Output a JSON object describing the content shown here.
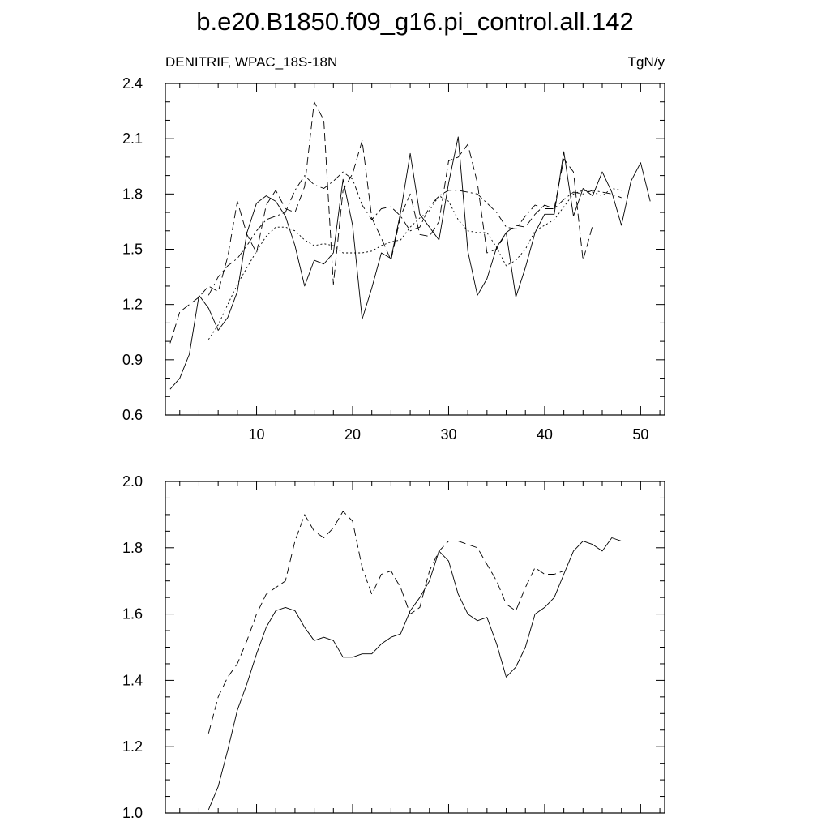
{
  "title": "b.e20.B1850.f09_g16.pi_control.all.142",
  "chart_data": [
    {
      "type": "line",
      "subtitle_left": "DENITRIF, WPAC_18S-18N",
      "subtitle_right": "TgN/y",
      "xlim": [
        0.5,
        52.5
      ],
      "ylim": [
        0.6,
        2.4
      ],
      "xticks": [
        10,
        20,
        30,
        40,
        50
      ],
      "xtick_labels": [
        "10",
        "20",
        "30",
        "40",
        "50"
      ],
      "yticks": [
        0.6,
        0.9,
        1.2,
        1.5,
        1.8,
        2.1,
        2.4
      ],
      "ytick_labels": [
        "0.6",
        "0.9",
        "1.2",
        "1.5",
        "1.8",
        "2.1",
        "2.4"
      ],
      "series": [
        {
          "style": "solid",
          "x": [
            1,
            2,
            3,
            4,
            5,
            6,
            7,
            8,
            9,
            10,
            11,
            12,
            13,
            14,
            15,
            16,
            17,
            18,
            19,
            20,
            21,
            22,
            23,
            24,
            25,
            26,
            27,
            28,
            29,
            30,
            31,
            32,
            33,
            34,
            35,
            36,
            37,
            38,
            39,
            40,
            41,
            42,
            43,
            44,
            45,
            46,
            47,
            48,
            49,
            50,
            51
          ],
          "y": [
            0.74,
            0.8,
            0.93,
            1.25,
            1.18,
            1.06,
            1.13,
            1.27,
            1.59,
            1.75,
            1.79,
            1.76,
            1.68,
            1.52,
            1.3,
            1.44,
            1.42,
            1.48,
            1.88,
            1.63,
            1.12,
            1.29,
            1.48,
            1.45,
            1.7,
            2.02,
            1.69,
            1.62,
            1.55,
            1.86,
            2.11,
            1.49,
            1.25,
            1.34,
            1.51,
            1.59,
            1.24,
            1.4,
            1.59,
            1.69,
            1.69,
            2.03,
            1.68,
            1.83,
            1.79,
            1.92,
            1.81,
            1.63,
            1.87,
            1.97,
            1.76
          ]
        },
        {
          "style": "dashed",
          "x": [
            1,
            2,
            3,
            4,
            5,
            6,
            7,
            8,
            9,
            10,
            11,
            12,
            13,
            14,
            15,
            16,
            17,
            18,
            19,
            20,
            21,
            22,
            23,
            24,
            25,
            26,
            27,
            28,
            29,
            30,
            31,
            32,
            33,
            34,
            35,
            36,
            37,
            38,
            39,
            40,
            41,
            42,
            43,
            44,
            45
          ],
          "y": [
            0.99,
            1.16,
            1.2,
            1.24,
            1.3,
            1.27,
            1.46,
            1.76,
            1.58,
            1.48,
            1.74,
            1.82,
            1.72,
            1.7,
            1.84,
            2.3,
            2.2,
            1.31,
            1.82,
            1.91,
            2.09,
            1.67,
            1.56,
            1.44,
            1.68,
            1.8,
            1.58,
            1.57,
            1.65,
            1.98,
            2.0,
            2.07,
            1.86,
            1.48,
            1.5,
            1.59,
            1.63,
            1.62,
            1.69,
            1.74,
            1.72,
            1.99,
            1.92,
            1.44,
            1.63
          ]
        },
        {
          "style": "dash-dot",
          "x": [
            5,
            6,
            7,
            8,
            9,
            10,
            11,
            12,
            13,
            14,
            15,
            16,
            17,
            18,
            19,
            20,
            21,
            22,
            23,
            24,
            25,
            26,
            27,
            28,
            29,
            30,
            31,
            32,
            33,
            34,
            35,
            36,
            37,
            38,
            39,
            40,
            41,
            42,
            43,
            44,
            45,
            46,
            47,
            48
          ],
          "y": [
            1.25,
            1.35,
            1.41,
            1.45,
            1.52,
            1.6,
            1.66,
            1.68,
            1.7,
            1.82,
            1.9,
            1.85,
            1.83,
            1.87,
            1.92,
            1.88,
            1.74,
            1.66,
            1.72,
            1.73,
            1.68,
            1.6,
            1.62,
            1.73,
            1.79,
            1.82,
            1.82,
            1.81,
            1.8,
            1.75,
            1.7,
            1.62,
            1.61,
            1.68,
            1.74,
            1.72,
            1.72,
            1.77,
            1.81,
            1.8,
            1.82,
            1.81,
            1.8,
            1.78
          ]
        },
        {
          "style": "dotted",
          "x": [
            5,
            6,
            7,
            8,
            9,
            10,
            11,
            12,
            13,
            14,
            15,
            16,
            17,
            18,
            19,
            20,
            21,
            22,
            23,
            24,
            25,
            26,
            27,
            28,
            29,
            30,
            31,
            32,
            33,
            34,
            35,
            36,
            37,
            38,
            39,
            40,
            41,
            42,
            43,
            44,
            45,
            46,
            47,
            48
          ],
          "y": [
            1.01,
            1.09,
            1.2,
            1.31,
            1.4,
            1.49,
            1.57,
            1.62,
            1.62,
            1.6,
            1.55,
            1.52,
            1.53,
            1.52,
            1.48,
            1.48,
            1.48,
            1.49,
            1.52,
            1.54,
            1.55,
            1.62,
            1.67,
            1.71,
            1.79,
            1.76,
            1.66,
            1.6,
            1.59,
            1.59,
            1.51,
            1.41,
            1.44,
            1.5,
            1.6,
            1.63,
            1.66,
            1.73,
            1.8,
            1.82,
            1.81,
            1.79,
            1.83,
            1.82
          ]
        }
      ]
    },
    {
      "type": "line",
      "xlim": [
        0.5,
        52.5
      ],
      "ylim": [
        1.0,
        2.0
      ],
      "xticks": [
        10,
        20,
        30,
        40,
        50
      ],
      "yticks": [
        1.0,
        1.2,
        1.4,
        1.6,
        1.8,
        2.0
      ],
      "ytick_labels": [
        "1.0",
        "1.2",
        "1.4",
        "1.6",
        "1.8",
        "2.0"
      ],
      "series": [
        {
          "style": "dashed",
          "x": [
            5,
            6,
            7,
            8,
            9,
            10,
            11,
            12,
            13,
            14,
            15,
            16,
            17,
            18,
            19,
            20,
            21,
            22,
            23,
            24,
            25,
            26,
            27,
            28,
            29,
            30,
            31,
            32,
            33,
            34,
            35,
            36,
            37,
            38,
            39,
            40,
            41,
            42
          ],
          "y": [
            1.24,
            1.35,
            1.41,
            1.45,
            1.52,
            1.6,
            1.66,
            1.68,
            1.7,
            1.82,
            1.9,
            1.85,
            1.83,
            1.86,
            1.91,
            1.88,
            1.74,
            1.66,
            1.72,
            1.73,
            1.68,
            1.6,
            1.62,
            1.73,
            1.79,
            1.82,
            1.82,
            1.81,
            1.8,
            1.75,
            1.7,
            1.63,
            1.61,
            1.68,
            1.74,
            1.72,
            1.72,
            1.73
          ]
        },
        {
          "style": "solid",
          "x": [
            5,
            6,
            7,
            8,
            9,
            10,
            11,
            12,
            13,
            14,
            15,
            16,
            17,
            18,
            19,
            20,
            21,
            22,
            23,
            24,
            25,
            26,
            27,
            28,
            29,
            30,
            31,
            32,
            33,
            34,
            35,
            36,
            37,
            38,
            39,
            40,
            41,
            42,
            43,
            44,
            45,
            46,
            47,
            48
          ],
          "y": [
            1.01,
            1.08,
            1.19,
            1.31,
            1.39,
            1.48,
            1.56,
            1.61,
            1.62,
            1.61,
            1.56,
            1.52,
            1.53,
            1.52,
            1.47,
            1.47,
            1.48,
            1.48,
            1.51,
            1.53,
            1.54,
            1.61,
            1.65,
            1.7,
            1.79,
            1.76,
            1.66,
            1.6,
            1.58,
            1.59,
            1.51,
            1.41,
            1.44,
            1.5,
            1.6,
            1.62,
            1.65,
            1.72,
            1.79,
            1.82,
            1.81,
            1.79,
            1.83,
            1.82
          ]
        }
      ]
    }
  ]
}
